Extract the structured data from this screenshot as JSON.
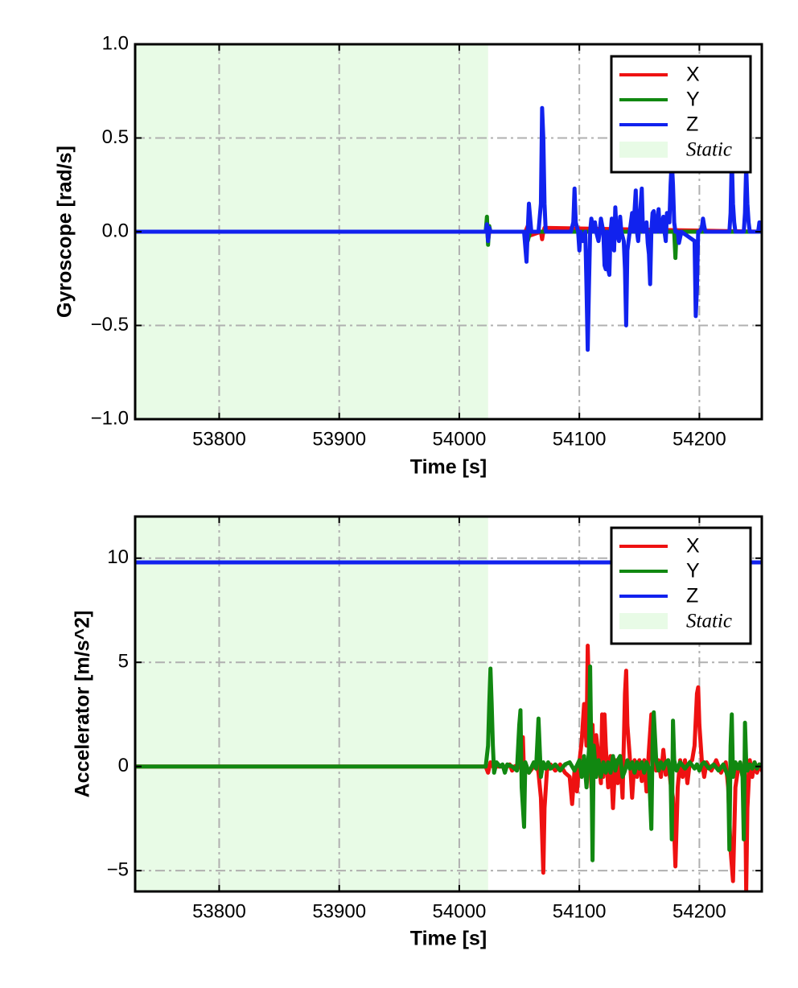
{
  "chart_data": [
    {
      "type": "line",
      "id": "gyro",
      "xlabel": "Time [s]",
      "ylabel": "Gyroscope [rad/s]",
      "xlim": [
        53730,
        54252
      ],
      "ylim": [
        -1.0,
        1.0
      ],
      "xticks": [
        53800,
        53900,
        54000,
        54100,
        54200
      ],
      "xtick_labels": [
        "53800",
        "53900",
        "54000",
        "54100",
        "54200"
      ],
      "yticks": [
        -1.0,
        -0.5,
        0.0,
        0.5,
        1.0
      ],
      "ytick_labels": [
        "−1.0",
        "−0.5",
        "0.0",
        "0.5",
        "1.0"
      ],
      "grid": true,
      "legend_position": "top-right",
      "static_region": {
        "label": "Static",
        "x_start": 53730,
        "x_end": 54024,
        "color": "#e8fbe6"
      },
      "series": [
        {
          "name": "X",
          "color": "#ee1111",
          "x": [
            53730,
            54022,
            54023,
            54024,
            54025,
            54055,
            54057,
            54059,
            54068,
            54069,
            54070,
            54071,
            54252
          ],
          "y": [
            0,
            0,
            0.05,
            -0.05,
            0,
            0,
            0.03,
            -0.02,
            0,
            -0.04,
            0,
            0.02,
            0
          ]
        },
        {
          "name": "Y",
          "color": "#118811",
          "x": [
            53730,
            54022,
            54023,
            54024,
            54025,
            54026,
            54055,
            54057,
            54059,
            54179,
            54180,
            54181,
            54252
          ],
          "y": [
            0,
            0,
            0.08,
            -0.07,
            0.03,
            0,
            0,
            -0.05,
            0,
            0,
            -0.14,
            0,
            0
          ]
        },
        {
          "name": "Z",
          "color": "#1122ee",
          "x": [
            53730,
            54022,
            54023,
            54024,
            54025,
            54026,
            54054,
            54056,
            54057,
            54058,
            54060,
            54066,
            54068,
            54069,
            54070,
            54071,
            54072,
            54073,
            54074,
            54093,
            54095,
            54096,
            54097,
            54099,
            54100,
            54101,
            54103,
            54105,
            54106,
            54107,
            54108,
            54109,
            54110,
            54112,
            54113,
            54114,
            54116,
            54117,
            54118,
            54120,
            54121,
            54122,
            54123,
            54124,
            54125,
            54126,
            54127,
            54128,
            54129,
            54130,
            54131,
            54133,
            54134,
            54135,
            54137,
            54138,
            54139,
            54140,
            54142,
            54143,
            54144,
            54145,
            54147,
            54148,
            54149,
            54150,
            54152,
            54153,
            54154,
            54156,
            54157,
            54158,
            54159,
            54160,
            54161,
            54162,
            54163,
            54164,
            54166,
            54167,
            54168,
            54170,
            54171,
            54172,
            54173,
            54175,
            54176,
            54177,
            54178,
            54179,
            54180,
            54182,
            54183,
            54185,
            54196,
            54197,
            54198,
            54199,
            54200,
            54202,
            54203,
            54204,
            54205,
            54225,
            54226,
            54227,
            54228,
            54229,
            54230,
            54237,
            54238,
            54239,
            54240,
            54241,
            54242,
            54249,
            54250,
            54251,
            54252
          ],
          "y": [
            0,
            0,
            0.04,
            -0.05,
            0.02,
            0,
            0,
            -0.16,
            0,
            0.15,
            0,
            0,
            0.15,
            0.66,
            0.5,
            0.15,
            0,
            0,
            0,
            0,
            0.05,
            0.23,
            0.05,
            0,
            -0.1,
            0,
            -0.05,
            0,
            -0.3,
            -0.63,
            -0.3,
            0,
            0.07,
            0,
            0.05,
            0,
            -0.05,
            0,
            0.07,
            0,
            -0.18,
            -0.2,
            0,
            -0.2,
            -0.23,
            0,
            0.07,
            0,
            -0.1,
            0.13,
            0,
            -0.05,
            0.08,
            0,
            -0.05,
            -0.2,
            -0.5,
            -0.1,
            0,
            0.05,
            0.1,
            0,
            0.22,
            0,
            -0.05,
            0.04,
            0.23,
            0,
            0,
            0.05,
            -0.06,
            -0.12,
            -0.28,
            0,
            0.1,
            0.11,
            0,
            0,
            0.12,
            0,
            0,
            0.08,
            0,
            -0.05,
            0.1,
            0.05,
            0.25,
            0.38,
            0.25,
            0.05,
            0,
            0,
            -0.06,
            0,
            -0.05,
            -0.45,
            -0.3,
            0,
            0,
            0.02,
            0.07,
            0.03,
            0,
            0,
            0.1,
            0.4,
            0.15,
            0.05,
            0,
            0,
            0.1,
            0.35,
            0.15,
            0.05,
            0,
            0,
            0.05,
            0,
            0
          ]
        }
      ]
    },
    {
      "type": "line",
      "id": "accel",
      "xlabel": "Time [s]",
      "ylabel": "Accelerator [m/s^2]",
      "xlim": [
        53730,
        54252
      ],
      "ylim": [
        -6.0,
        12.0
      ],
      "xticks": [
        53800,
        53900,
        54000,
        54100,
        54200
      ],
      "xtick_labels": [
        "53800",
        "53900",
        "54000",
        "54100",
        "54200"
      ],
      "yticks": [
        -5,
        0,
        5,
        10
      ],
      "ytick_labels": [
        "−5",
        "0",
        "5",
        "10"
      ],
      "grid": true,
      "legend_position": "top-right",
      "static_region": {
        "label": "Static",
        "x_start": 53730,
        "x_end": 54024,
        "color": "#e8fbe6"
      },
      "series": [
        {
          "name": "X",
          "color": "#ee1111",
          "x": [
            53730,
            54022,
            54024,
            54026,
            54028,
            54040,
            54042,
            54044,
            54046,
            54050,
            54052,
            54053,
            54054,
            54056,
            54058,
            54062,
            54064,
            54066,
            54068,
            54070,
            54071,
            54073,
            54076,
            54080,
            54084,
            54088,
            54092,
            54094,
            54096,
            54098,
            54100,
            54102,
            54104,
            54106,
            54107,
            54108,
            54109,
            54110,
            54111,
            54112,
            54114,
            54116,
            54118,
            54119,
            54120,
            54121,
            54122,
            54124,
            54126,
            54128,
            54130,
            54132,
            54134,
            54136,
            54138,
            54139,
            54140,
            54142,
            54144,
            54146,
            54148,
            54150,
            54152,
            54154,
            54156,
            54158,
            54160,
            54162,
            54164,
            54166,
            54168,
            54170,
            54172,
            54174,
            54176,
            54178,
            54180,
            54182,
            54184,
            54186,
            54188,
            54190,
            54192,
            54194,
            54196,
            54198,
            54199,
            54200,
            54202,
            54204,
            54206,
            54210,
            54214,
            54218,
            54222,
            54224,
            54226,
            54228,
            54230,
            54232,
            54234,
            54236,
            54238,
            54239,
            54240,
            54242,
            54244,
            54246,
            54248,
            54250,
            54252
          ],
          "y": [
            0,
            0,
            -0.3,
            0.2,
            0,
            0,
            0.1,
            -0.2,
            0,
            0.1,
            -0.2,
            1.4,
            -0.5,
            0,
            -0.3,
            0,
            0.2,
            -0.3,
            -1.5,
            -5.1,
            -2.0,
            -0.2,
            0.1,
            -0.2,
            0.1,
            -0.3,
            -0.5,
            -1.8,
            -0.2,
            -1.2,
            0.2,
            1.2,
            3.0,
            1.0,
            5.8,
            3.5,
            0.5,
            -1.0,
            2.0,
            -0.5,
            1.5,
            0.5,
            -0.8,
            2.5,
            -0.5,
            2.5,
            1.0,
            -1.0,
            0.5,
            -2.0,
            0.3,
            -0.8,
            0.5,
            -1.5,
            3.5,
            4.6,
            2.0,
            0.5,
            -1.5,
            0.3,
            -0.5,
            0.3,
            -0.7,
            0.3,
            -1.2,
            0.8,
            2.5,
            1.0,
            -0.2,
            0.3,
            -0.5,
            0.8,
            -0.4,
            0.3,
            -0.8,
            -1.5,
            -4.8,
            -1.0,
            0.3,
            -0.5,
            0.3,
            -0.8,
            0.2,
            0.3,
            1.0,
            3.5,
            3.8,
            2.0,
            0.3,
            -0.5,
            0.2,
            -0.2,
            0.3,
            -0.3,
            0.2,
            -1.0,
            -4.0,
            -5.5,
            -1.0,
            -0.2,
            0.2,
            -0.5,
            -0.3,
            -6.0,
            -2.0,
            0.3,
            -0.5,
            0.2,
            -0.3,
            0.1,
            -0.2
          ]
        },
        {
          "name": "Y",
          "color": "#118811",
          "x": [
            53730,
            54022,
            54024,
            54025,
            54026,
            54027,
            54028,
            54029,
            54031,
            54034,
            54036,
            54038,
            54040,
            54044,
            54048,
            54050,
            54051,
            54052,
            54054,
            54055,
            54058,
            54062,
            54064,
            54066,
            54068,
            54070,
            54072,
            54074,
            54076,
            54080,
            54084,
            54088,
            54092,
            54096,
            54100,
            54102,
            54104,
            54106,
            54108,
            54109,
            54110,
            54111,
            54112,
            54114,
            54116,
            54118,
            54120,
            54122,
            54124,
            54126,
            54128,
            54130,
            54132,
            54134,
            54136,
            54138,
            54140,
            54142,
            54144,
            54146,
            54148,
            54150,
            54152,
            54154,
            54156,
            54158,
            54160,
            54161,
            54162,
            54164,
            54166,
            54168,
            54170,
            54172,
            54174,
            54176,
            54177,
            54178,
            54179,
            54181,
            54184,
            54188,
            54192,
            54196,
            54198,
            54200,
            54202,
            54204,
            54208,
            54212,
            54216,
            54220,
            54224,
            54225,
            54226,
            54227,
            54228,
            54230,
            54232,
            54234,
            54236,
            54237,
            54238,
            54239,
            54240,
            54242,
            54244,
            54246,
            54248,
            54250,
            54252
          ],
          "y": [
            0,
            0,
            1.0,
            3.0,
            4.7,
            3.0,
            1.0,
            -0.3,
            0.2,
            0,
            0.1,
            -0.3,
            0.1,
            0,
            -0.2,
            2.0,
            2.7,
            -1.0,
            -2.9,
            0.2,
            -0.3,
            0.2,
            -0.1,
            2.3,
            -0.5,
            0.2,
            -0.1,
            0.2,
            -0.1,
            0.1,
            -0.2,
            0.1,
            0.2,
            -0.2,
            0.3,
            -0.5,
            0.5,
            -1.0,
            0.8,
            4.8,
            0.5,
            -4.5,
            1.0,
            -0.5,
            0.3,
            -0.5,
            0.2,
            -0.3,
            0.2,
            -0.3,
            0.5,
            -0.2,
            0.3,
            0.5,
            -0.5,
            -0.2,
            0.3,
            -0.1,
            0.2,
            -0.3,
            0.2,
            -0.1,
            0.2,
            -0.3,
            0.2,
            -0.1,
            -3.0,
            1.0,
            2.6,
            0.3,
            -0.2,
            0.2,
            -0.1,
            0.2,
            0.3,
            -0.5,
            -3.5,
            2.2,
            0.3,
            -0.2,
            0.2,
            -0.1,
            0.2,
            -0.1,
            0.1,
            -0.2,
            0.1,
            0.2,
            -0.1,
            0.1,
            -0.2,
            0.1,
            -0.5,
            -4.0,
            1.0,
            2.5,
            -0.5,
            0.2,
            -0.1,
            0.2,
            -0.5,
            -3.5,
            2.1,
            0.2,
            -0.2,
            0.1,
            -0.1,
            0.2,
            -0.1,
            0.1,
            0
          ]
        },
        {
          "name": "Z",
          "color": "#1122ee",
          "x": [
            53730,
            54252
          ],
          "y": [
            9.8,
            9.8
          ]
        }
      ]
    }
  ]
}
